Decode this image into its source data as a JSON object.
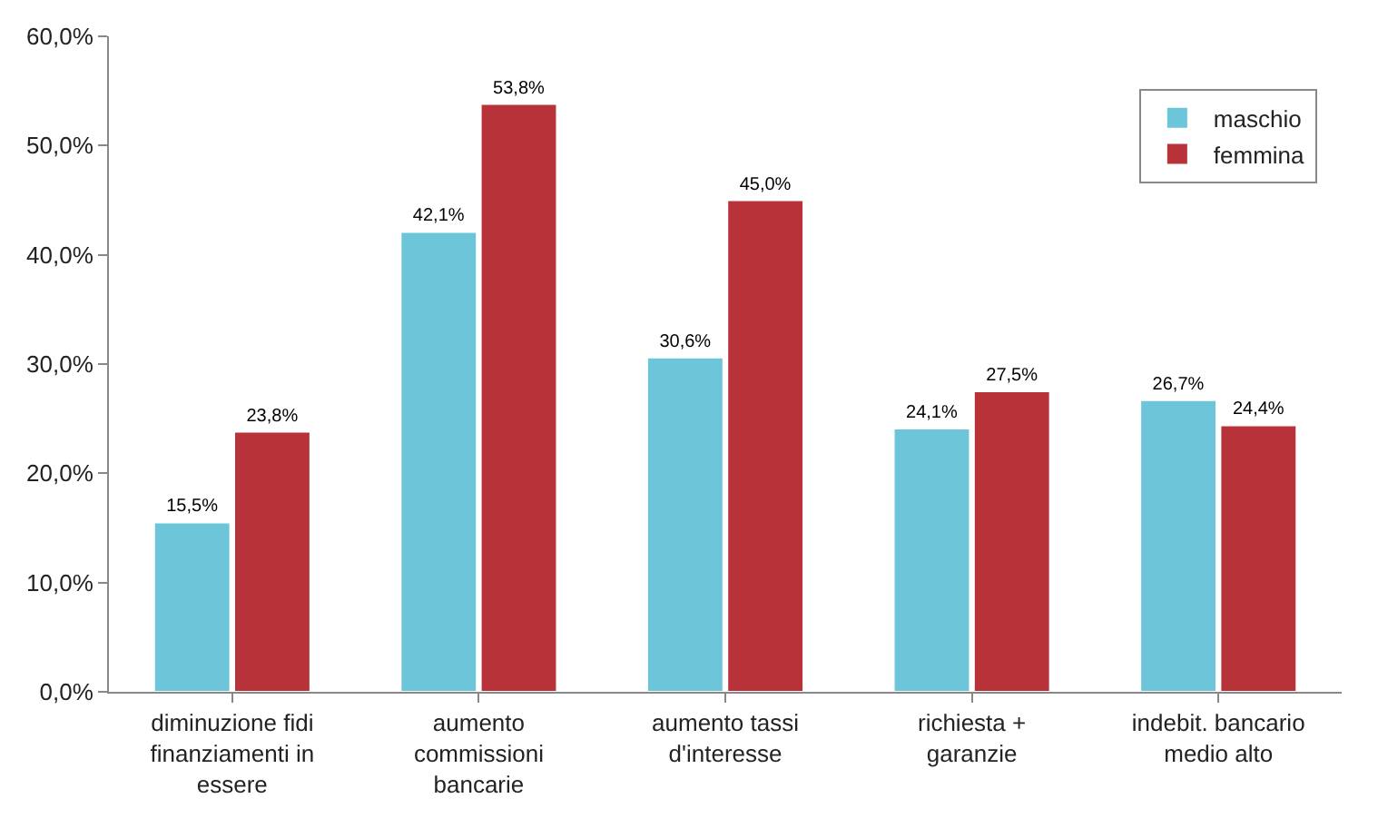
{
  "chart_data": {
    "type": "bar",
    "categories": [
      "diminuzione fidi\nfinanziamenti in\nessere",
      "aumento\ncommissioni\nbancarie",
      "aumento tassi\nd'interesse",
      "richiesta +\ngaranzie",
      "indebit. bancario\nmedio alto"
    ],
    "series": [
      {
        "name": "maschio",
        "color": "#6cc5d8",
        "values": [
          15.5,
          42.1,
          30.6,
          24.1,
          26.7
        ],
        "value_labels": [
          "15,5%",
          "42,1%",
          "30,6%",
          "24,1%",
          "26,7%"
        ]
      },
      {
        "name": "femmina",
        "color": "#b8323a",
        "values": [
          23.8,
          53.8,
          45.0,
          27.5,
          24.4
        ],
        "value_labels": [
          "23,8%",
          "53,8%",
          "45,0%",
          "27,5%",
          "24,4%"
        ]
      }
    ],
    "ylim": [
      0,
      60
    ],
    "yticks": [
      {
        "value": 0,
        "label": "0,0%"
      },
      {
        "value": 10,
        "label": "10,0%"
      },
      {
        "value": 20,
        "label": "20,0%"
      },
      {
        "value": 30,
        "label": "30,0%"
      },
      {
        "value": 40,
        "label": "40,0%"
      },
      {
        "value": 50,
        "label": "50,0%"
      },
      {
        "value": 60,
        "label": "60,0%"
      }
    ],
    "grid": false,
    "legend": "top right"
  }
}
